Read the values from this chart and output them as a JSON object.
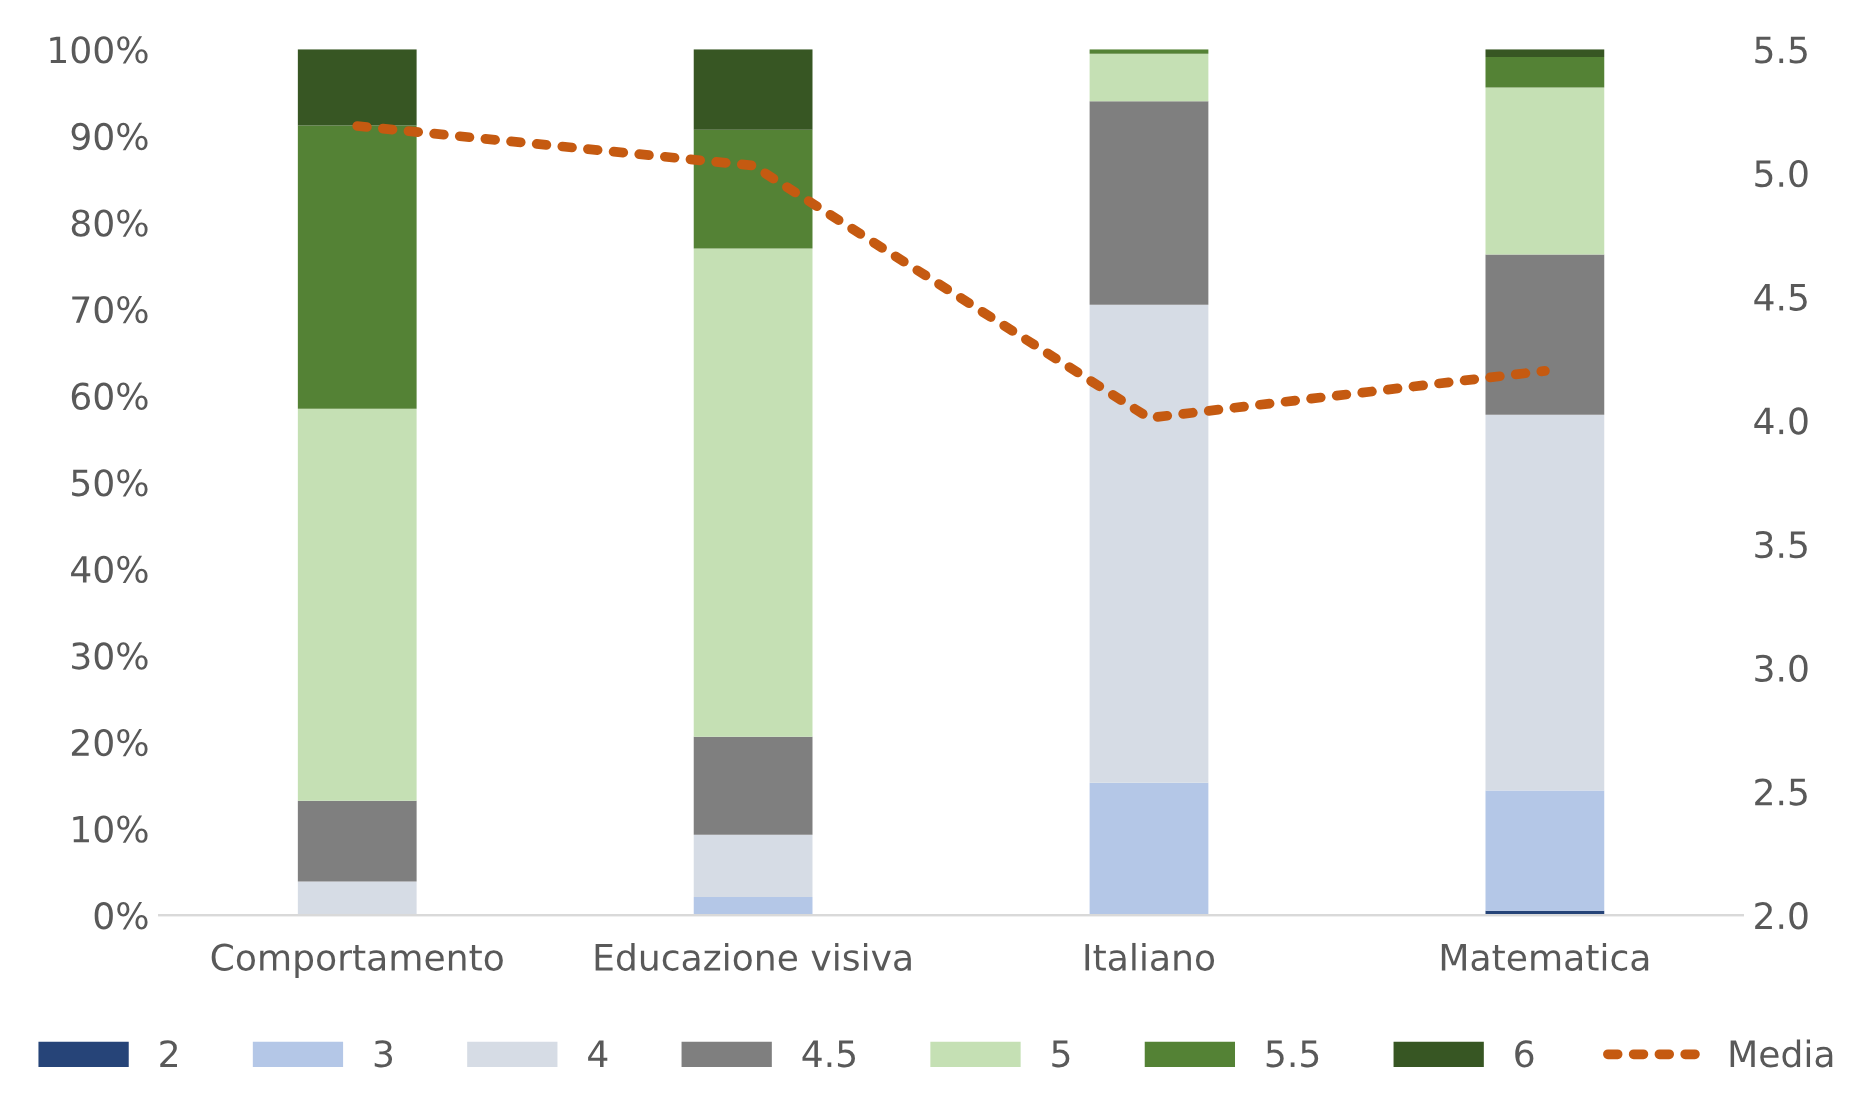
{
  "chart_data": {
    "type": "bar",
    "stacked": true,
    "categories": [
      "Comportamento",
      "Educazione visiva",
      "Italiano",
      "Matematica"
    ],
    "series": [
      {
        "name": "2",
        "color": "#264478",
        "values": [
          0,
          0,
          0,
          0.5
        ]
      },
      {
        "name": "3",
        "color": "#b4c7e7",
        "values": [
          0,
          2.1,
          15.3,
          13.9
        ]
      },
      {
        "name": "4",
        "color": "#d6dce5",
        "values": [
          3.9,
          7.2,
          55.2,
          43.4
        ]
      },
      {
        "name": "4.5",
        "color": "#7f7f7f",
        "values": [
          9.3,
          11.3,
          23.5,
          18.5
        ]
      },
      {
        "name": "5",
        "color": "#c5e0b4",
        "values": [
          45.3,
          56.4,
          5.5,
          19.3
        ]
      },
      {
        "name": "5.5",
        "color": "#548235",
        "values": [
          32.7,
          13.7,
          0.5,
          3.5
        ]
      },
      {
        "name": "6",
        "color": "#375623",
        "values": [
          8.8,
          9.3,
          0,
          0.9
        ]
      },
      {
        "name": "Media",
        "type": "line",
        "axis": "y2",
        "color": "#c55a11",
        "line_style": "dotted",
        "values": [
          5.19,
          5.03,
          4.01,
          4.2
        ]
      }
    ],
    "ylim": [
      0,
      100
    ],
    "yticks": [
      {
        "value": 0,
        "label": "0%"
      },
      {
        "value": 10,
        "label": "10%"
      },
      {
        "value": 20,
        "label": "20%"
      },
      {
        "value": 30,
        "label": "30%"
      },
      {
        "value": 40,
        "label": "40%"
      },
      {
        "value": 50,
        "label": "50%"
      },
      {
        "value": 60,
        "label": "60%"
      },
      {
        "value": 70,
        "label": "70%"
      },
      {
        "value": 80,
        "label": "80%"
      },
      {
        "value": 90,
        "label": "90%"
      },
      {
        "value": 100,
        "label": "100%"
      }
    ],
    "y2lim": [
      2.0,
      5.5
    ],
    "y2ticks": [
      {
        "value": 2.0,
        "label": "2.0"
      },
      {
        "value": 2.5,
        "label": "2.5"
      },
      {
        "value": 3.0,
        "label": "3.0"
      },
      {
        "value": 3.5,
        "label": "3.5"
      },
      {
        "value": 4.0,
        "label": "4.0"
      },
      {
        "value": 4.5,
        "label": "4.5"
      },
      {
        "value": 5.0,
        "label": "5.0"
      },
      {
        "value": 5.5,
        "label": "5.5"
      }
    ],
    "legend": "bottom"
  }
}
